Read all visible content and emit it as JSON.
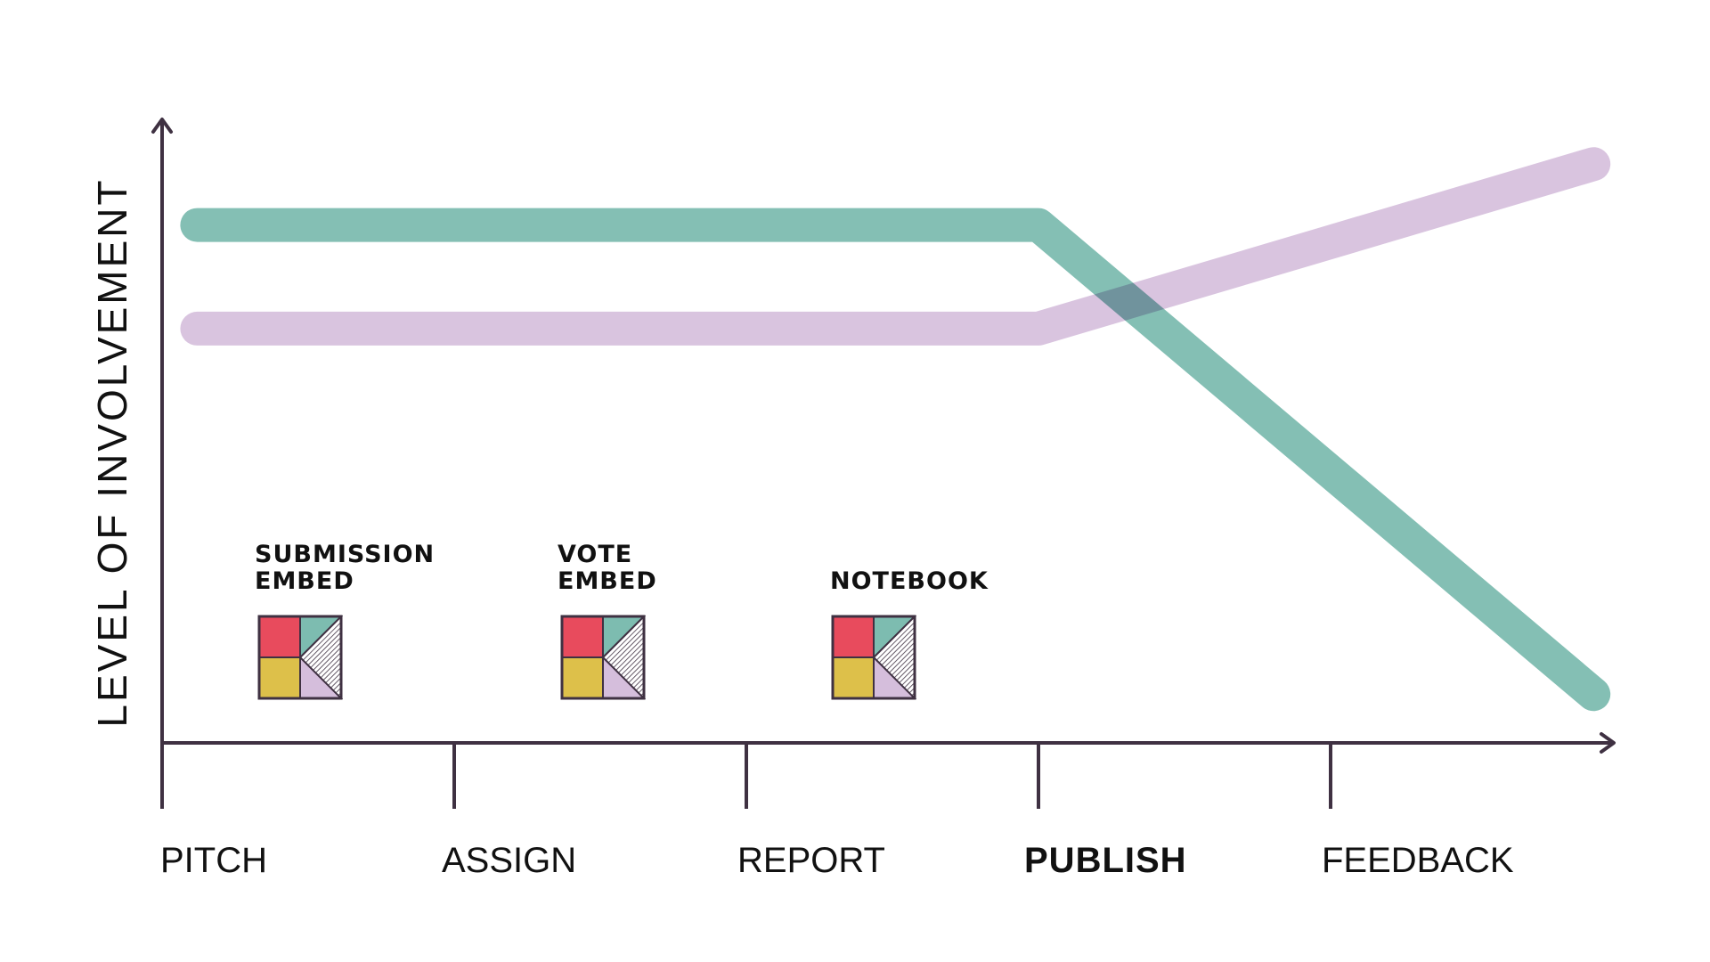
{
  "chart_data": {
    "type": "line",
    "ylabel": "LEVEL OF INVOLVEMENT",
    "categories": [
      "PITCH",
      "ASSIGN",
      "REPORT",
      "PUBLISH",
      "FEEDBACK"
    ],
    "emphasized_category": "PUBLISH",
    "y_range": [
      0,
      100
    ],
    "grid": false,
    "series": [
      {
        "color": "#7dbcb0",
        "points": [
          {
            "x": 0.12,
            "y": 85
          },
          {
            "x": 3.0,
            "y": 85
          },
          {
            "x": 4.9,
            "y": 8
          }
        ]
      },
      {
        "color": "#d5bedc",
        "points": [
          {
            "x": 0.12,
            "y": 68
          },
          {
            "x": 3.0,
            "y": 68
          },
          {
            "x": 4.9,
            "y": 95
          }
        ]
      }
    ],
    "annotations": [
      {
        "lines": [
          "SUBMISSION",
          "EMBED"
        ],
        "icon": "quadrant-logo-icon"
      },
      {
        "lines": [
          "VOTE",
          "EMBED"
        ],
        "icon": "quadrant-logo-icon"
      },
      {
        "lines": [
          "NOTEBOOK"
        ],
        "icon": "quadrant-logo-icon"
      }
    ]
  },
  "colors": {
    "axis": "#3f3142",
    "teal": "#7dbcb0",
    "lilac": "#d5bedc",
    "red": "#e84b5d",
    "yellow": "#ddc04a",
    "text": "#111111"
  }
}
